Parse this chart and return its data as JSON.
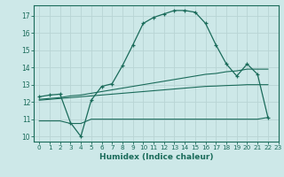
{
  "xlabel": "Humidex (Indice chaleur)",
  "background_color": "#cde8e8",
  "grid_color": "#b8d4d4",
  "line_color": "#1a6b5a",
  "x_min": -0.5,
  "x_max": 23,
  "y_min": 9.7,
  "y_max": 17.6,
  "yticks": [
    10,
    11,
    12,
    13,
    14,
    15,
    16,
    17
  ],
  "xticks": [
    0,
    1,
    2,
    3,
    4,
    5,
    6,
    7,
    8,
    9,
    10,
    11,
    12,
    13,
    14,
    15,
    16,
    17,
    18,
    19,
    20,
    21,
    22,
    23
  ],
  "curve1_x": [
    0,
    1,
    2,
    3,
    4,
    5,
    6,
    7,
    8,
    9,
    10,
    11,
    12,
    13,
    14,
    15,
    16,
    17,
    18,
    19,
    20,
    21,
    22
  ],
  "curve1_y": [
    12.3,
    12.4,
    12.45,
    10.8,
    10.0,
    12.1,
    12.9,
    13.05,
    14.1,
    15.3,
    16.55,
    16.9,
    17.1,
    17.3,
    17.3,
    17.2,
    16.55,
    15.3,
    14.2,
    13.5,
    14.2,
    13.6,
    11.1
  ],
  "curve2_x": [
    0,
    1,
    2,
    3,
    4,
    5,
    6,
    7,
    8,
    9,
    10,
    11,
    12,
    13,
    14,
    15,
    16,
    17,
    18,
    19,
    20,
    21,
    22
  ],
  "curve2_y": [
    12.15,
    12.2,
    12.25,
    12.35,
    12.4,
    12.5,
    12.6,
    12.7,
    12.8,
    12.9,
    13.0,
    13.1,
    13.2,
    13.3,
    13.4,
    13.5,
    13.6,
    13.65,
    13.75,
    13.8,
    13.9,
    13.9,
    13.9
  ],
  "curve3_x": [
    0,
    1,
    2,
    3,
    4,
    5,
    6,
    7,
    8,
    9,
    10,
    11,
    12,
    13,
    14,
    15,
    16,
    17,
    18,
    19,
    20,
    21,
    22
  ],
  "curve3_y": [
    12.1,
    12.15,
    12.2,
    12.25,
    12.3,
    12.35,
    12.4,
    12.45,
    12.5,
    12.55,
    12.6,
    12.65,
    12.7,
    12.75,
    12.8,
    12.85,
    12.9,
    12.92,
    12.95,
    12.97,
    13.0,
    13.0,
    13.0
  ],
  "curve4_x": [
    0,
    2,
    3,
    4,
    5,
    6,
    7,
    8,
    9,
    10,
    11,
    12,
    13,
    14,
    15,
    16,
    17,
    18,
    19,
    20,
    21,
    22
  ],
  "curve4_y": [
    10.9,
    10.9,
    10.75,
    10.75,
    11.0,
    11.0,
    11.0,
    11.0,
    11.0,
    11.0,
    11.0,
    11.0,
    11.0,
    11.0,
    11.0,
    11.0,
    11.0,
    11.0,
    11.0,
    11.0,
    11.0,
    11.1
  ]
}
